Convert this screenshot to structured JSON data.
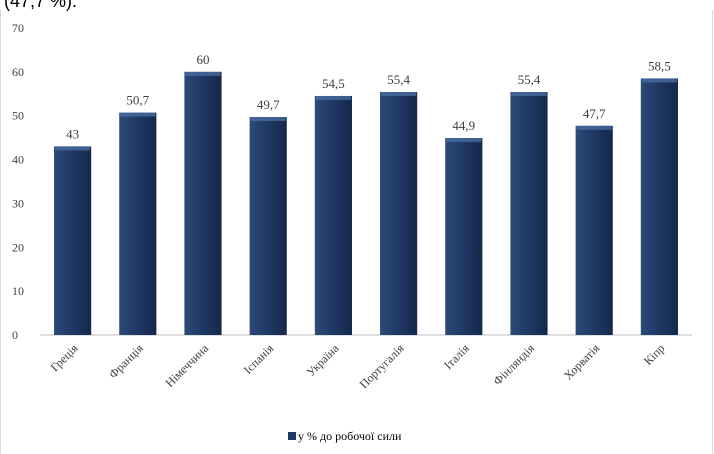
{
  "page": {
    "top_text": "(47,7 %)."
  },
  "chart_data": {
    "type": "bar",
    "categories": [
      "Греція",
      "Франція",
      "Німеччина",
      "Іспанія",
      "Україна",
      "Португалія",
      "Італія",
      "Фінляндія",
      "Хорватія",
      "Кіпр"
    ],
    "series": [
      {
        "name": "у % до робочої сили",
        "values": [
          43,
          50.7,
          60,
          49.7,
          54.5,
          55.4,
          44.9,
          55.4,
          47.7,
          58.5
        ]
      }
    ],
    "data_labels": [
      "43",
      "50,7",
      "60",
      "49,7",
      "54,5",
      "55,4",
      "44,9",
      "55,4",
      "47,7",
      "58,5"
    ],
    "yticks": [
      0,
      10,
      20,
      30,
      40,
      50,
      60,
      70
    ],
    "ylim": [
      0,
      70
    ],
    "grid": false,
    "legend_position": "bottom",
    "colors": {
      "bar": "#1f3864",
      "bar_top": "#4a6fa5",
      "axis": "#bfbfbf",
      "text": "#404040"
    }
  }
}
